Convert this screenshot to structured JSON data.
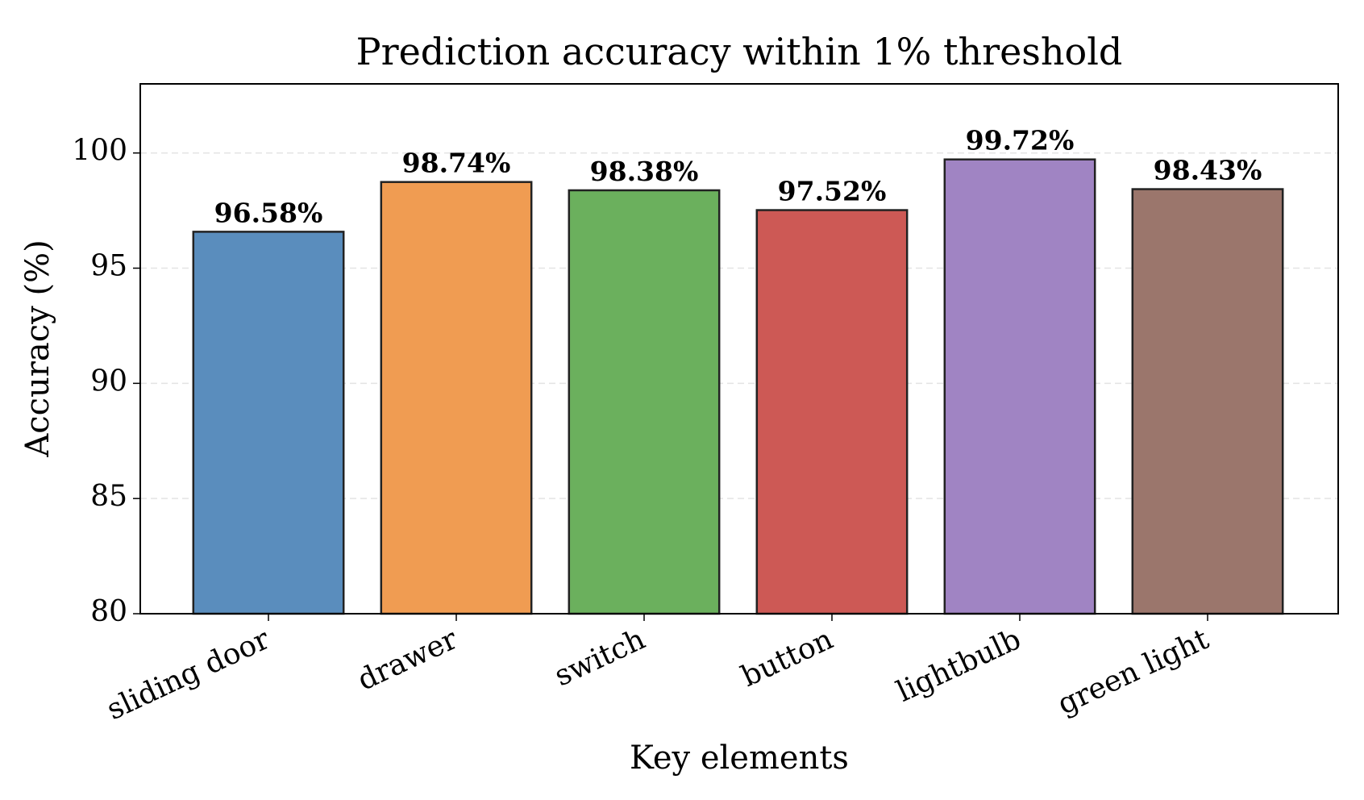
{
  "chart_data": {
    "type": "bar",
    "title": "Prediction accuracy within 1% threshold",
    "x_label": "Key elements",
    "y_label": "Accuracy (%)",
    "categories": [
      "sliding door",
      "drawer",
      "switch",
      "button",
      "lightbulb",
      "green light"
    ],
    "values": [
      96.58,
      98.74,
      98.38,
      97.52,
      99.72,
      98.43
    ],
    "value_labels": [
      "96.58%",
      "98.74%",
      "98.38%",
      "97.52%",
      "99.72%",
      "98.43%"
    ],
    "colors": [
      "#5a8dbd",
      "#f09c52",
      "#6bb05d",
      "#cd5955",
      "#a084c3",
      "#9b766c"
    ],
    "ylim": [
      80,
      103
    ],
    "yticks": [
      80,
      85,
      90,
      95,
      100
    ],
    "grid": true
  }
}
